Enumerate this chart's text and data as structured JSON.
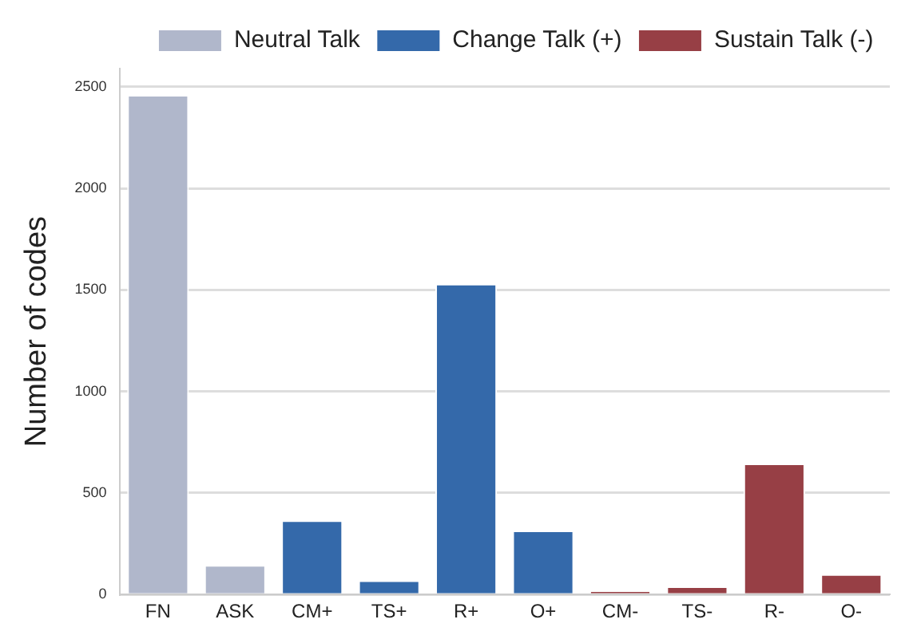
{
  "chart_data": {
    "type": "bar",
    "ylabel": "Number of codes",
    "categories": [
      "FN",
      "ASK",
      "CM+",
      "TS+",
      "R+",
      "O+",
      "CM-",
      "TS-",
      "R-",
      "O-"
    ],
    "series": [
      {
        "name": "Neutral Talk",
        "color": "#b0b7cb",
        "values": [
          2460,
          145,
          null,
          null,
          null,
          null,
          null,
          null,
          null,
          null
        ]
      },
      {
        "name": "Change Talk (+)",
        "color": "#3469aa",
        "values": [
          null,
          null,
          365,
          70,
          1530,
          315,
          null,
          null,
          null,
          null
        ]
      },
      {
        "name": "Sustain Talk (-)",
        "color": "#973f45",
        "values": [
          null,
          null,
          null,
          null,
          null,
          null,
          20,
          40,
          645,
          100
        ]
      }
    ],
    "ylim": [
      0,
      2590
    ],
    "yticks": [
      0,
      500,
      1000,
      1500,
      2000,
      2500
    ],
    "grid": "y",
    "legend": "top right"
  }
}
